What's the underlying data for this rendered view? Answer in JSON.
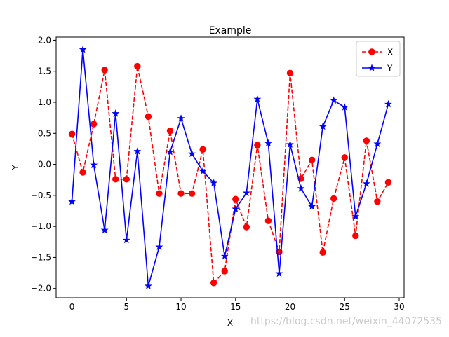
{
  "chart_data": {
    "type": "line",
    "title": "Example",
    "xlabel": "X",
    "ylabel": "Y",
    "xlim": [
      -1.45,
      30.45
    ],
    "ylim": [
      -2.15,
      2.05
    ],
    "xticks": [
      0,
      5,
      10,
      15,
      20,
      25,
      30
    ],
    "xtick_labels": [
      "0",
      "5",
      "10",
      "15",
      "20",
      "25",
      "30"
    ],
    "yticks": [
      -2.0,
      -1.5,
      -1.0,
      -0.5,
      0.0,
      0.5,
      1.0,
      1.5,
      2.0
    ],
    "ytick_labels": [
      "−2.0",
      "−1.5",
      "−1.0",
      "−0.5",
      "0.0",
      "0.5",
      "1.0",
      "1.5",
      "2.0"
    ],
    "grid": false,
    "legend_position": "top-right",
    "x": [
      0,
      1,
      2,
      3,
      4,
      5,
      6,
      7,
      8,
      9,
      10,
      11,
      12,
      13,
      14,
      15,
      16,
      17,
      18,
      19,
      20,
      21,
      22,
      23,
      24,
      25,
      26,
      27,
      28,
      29
    ],
    "series": [
      {
        "name": "X",
        "color": "#ff0000",
        "line_style": "dashed",
        "marker": "circle",
        "values": [
          0.49,
          -0.13,
          0.65,
          1.52,
          -0.24,
          -0.24,
          1.58,
          0.77,
          -0.47,
          0.54,
          -0.47,
          -0.47,
          0.24,
          -1.91,
          -1.72,
          -0.56,
          -1.01,
          0.31,
          -0.91,
          -1.41,
          1.47,
          -0.23,
          0.07,
          -1.42,
          -0.55,
          0.11,
          -1.15,
          0.38,
          -0.6,
          -0.29
        ]
      },
      {
        "name": "Y",
        "color": "#0000ff",
        "line_style": "solid",
        "marker": "star",
        "values": [
          -0.6,
          1.85,
          -0.01,
          -1.06,
          0.82,
          -1.22,
          0.21,
          -1.96,
          -1.33,
          0.2,
          0.74,
          0.17,
          -0.11,
          -0.3,
          -1.48,
          -0.72,
          -0.46,
          1.05,
          0.34,
          -1.76,
          0.32,
          -0.39,
          -0.68,
          0.61,
          1.03,
          0.92,
          -0.84,
          -0.31,
          0.33,
          0.97
        ]
      }
    ]
  },
  "watermark": "https://blog.csdn.net/weixin_44072535"
}
